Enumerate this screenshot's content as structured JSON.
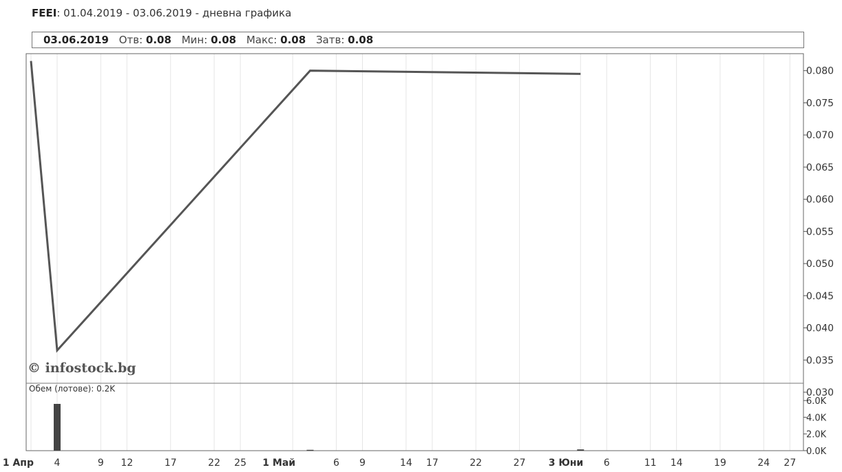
{
  "header": {
    "symbol": "FEEI",
    "period": "01.04.2019 - 03.06.2019 - дневна графика"
  },
  "info": {
    "date": "03.06.2019",
    "open_label": "Отв:",
    "open_value": "0.08",
    "min_label": "Мин:",
    "min_value": "0.08",
    "max_label": "Макс:",
    "max_value": "0.08",
    "close_label": "Затв:",
    "close_value": "0.08"
  },
  "watermark": "© infostock.bg",
  "volume": {
    "label": "Обем (лотове): 0.2K"
  },
  "chart_data": {
    "type": "line",
    "price_series": [
      {
        "date": "2019-04-01",
        "value": 0.0815
      },
      {
        "date": "2019-04-04",
        "value": 0.0365
      },
      {
        "date": "2019-05-03",
        "value": 0.08
      },
      {
        "date": "2019-06-03",
        "value": 0.0795
      }
    ],
    "volume_series": [
      {
        "date": "2019-04-04",
        "value": 5600
      },
      {
        "date": "2019-05-03",
        "value": 100
      },
      {
        "date": "2019-06-03",
        "value": 150
      }
    ],
    "price_ylim": [
      0.03,
      0.082
    ],
    "volume_ylim": [
      0,
      7000
    ],
    "price_ticks": [
      "0.080",
      "0.075",
      "0.070",
      "0.065",
      "0.060",
      "0.055",
      "0.050",
      "0.045",
      "0.040",
      "0.035",
      "0.030"
    ],
    "price_tick_values": [
      0.08,
      0.075,
      0.07,
      0.065,
      0.06,
      0.055,
      0.05,
      0.045,
      0.04,
      0.035,
      0.03
    ],
    "volume_ticks": [
      "6.0K",
      "4.0K",
      "2.0K",
      "0.0K"
    ],
    "volume_tick_values": [
      6000,
      4000,
      2000,
      0
    ],
    "x_ticks": [
      {
        "label": "1 Апр",
        "date": "2019-04-01",
        "bold": true
      },
      {
        "label": "4",
        "date": "2019-04-04"
      },
      {
        "label": "9",
        "date": "2019-04-09"
      },
      {
        "label": "12",
        "date": "2019-04-12"
      },
      {
        "label": "17",
        "date": "2019-04-17"
      },
      {
        "label": "22",
        "date": "2019-04-22"
      },
      {
        "label": "25",
        "date": "2019-04-25"
      },
      {
        "label": "1 Май",
        "date": "2019-05-01",
        "bold": true
      },
      {
        "label": "6",
        "date": "2019-05-06"
      },
      {
        "label": "9",
        "date": "2019-05-09"
      },
      {
        "label": "14",
        "date": "2019-05-14"
      },
      {
        "label": "17",
        "date": "2019-05-17"
      },
      {
        "label": "22",
        "date": "2019-05-22"
      },
      {
        "label": "27",
        "date": "2019-05-27"
      },
      {
        "label": "3 Юни",
        "date": "2019-06-03",
        "bold": true
      },
      {
        "label": "6",
        "date": "2019-06-06"
      },
      {
        "label": "11",
        "date": "2019-06-11"
      },
      {
        "label": "14",
        "date": "2019-06-14"
      },
      {
        "label": "19",
        "date": "2019-06-19"
      },
      {
        "label": "24",
        "date": "2019-06-24"
      },
      {
        "label": "27",
        "date": "2019-06-27"
      }
    ],
    "x_range": [
      "2019-04-01",
      "2019-06-28"
    ],
    "grid": true,
    "line_color": "#555555",
    "bar_color": "#444444"
  }
}
